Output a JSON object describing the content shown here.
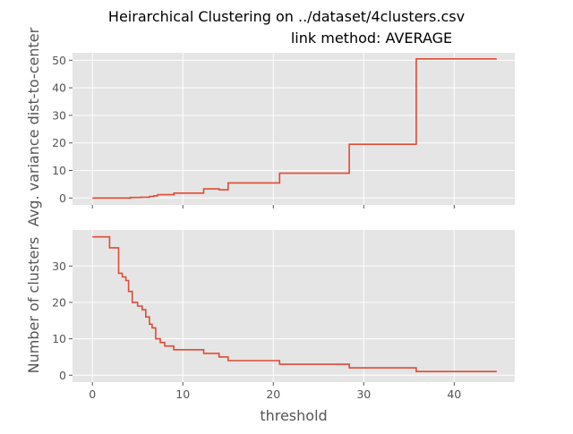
{
  "chart_data": [
    {
      "type": "line",
      "drawstyle": "steps-post",
      "title": "Heirarchical Clustering on ../dataset/4clusters.csv",
      "subtitle": "link method: AVERAGE",
      "xlabel": "",
      "ylabel": "Avg. variance dist-to-center",
      "xlim": [
        -2.2,
        46.7
      ],
      "ylim": [
        -2.5,
        52.7
      ],
      "x_ticks": [
        0,
        10,
        20,
        30,
        40
      ],
      "x_tick_labels": [
        "",
        "",
        "",
        "",
        ""
      ],
      "y_ticks": [
        0,
        10,
        20,
        30,
        40,
        50
      ],
      "y_tick_labels": [
        "0",
        "10",
        "20",
        "30",
        "40",
        "50"
      ],
      "grid": true,
      "color": "#E24A33",
      "background": "#E5E5E5",
      "x": [
        0,
        4.2,
        5.3,
        6.3,
        6.8,
        7.2,
        9.0,
        12.3,
        14.0,
        15.0,
        20.7,
        28.4,
        35.8,
        44.7
      ],
      "y": [
        0,
        0.2,
        0.3,
        0.6,
        0.8,
        1.2,
        1.8,
        3.3,
        3.0,
        5.5,
        9.0,
        19.5,
        50.5,
        50.5
      ]
    },
    {
      "type": "line",
      "drawstyle": "steps-post",
      "title": "",
      "xlabel": "threshold",
      "ylabel": "Number of clusters",
      "xlim": [
        -2.2,
        46.7
      ],
      "ylim": [
        -1.9,
        39.9
      ],
      "x_ticks": [
        0,
        10,
        20,
        30,
        40
      ],
      "x_tick_labels": [
        "0",
        "10",
        "20",
        "30",
        "40"
      ],
      "y_ticks": [
        0,
        10,
        20,
        30
      ],
      "y_tick_labels": [
        "0",
        "10",
        "20",
        "30"
      ],
      "grid": true,
      "color": "#E24A33",
      "background": "#E5E5E5",
      "x": [
        0,
        1.9,
        2.9,
        3.3,
        3.7,
        4.0,
        4.4,
        5.0,
        5.5,
        5.9,
        6.3,
        6.6,
        7.0,
        7.5,
        8.0,
        9.0,
        12.3,
        14.0,
        15.0,
        20.7,
        28.4,
        35.8,
        44.7
      ],
      "y": [
        38,
        35,
        28,
        27,
        26,
        23,
        20,
        19,
        18,
        16,
        14,
        13,
        10,
        9,
        8,
        7,
        6,
        5,
        4,
        3,
        2,
        1,
        1
      ]
    }
  ]
}
